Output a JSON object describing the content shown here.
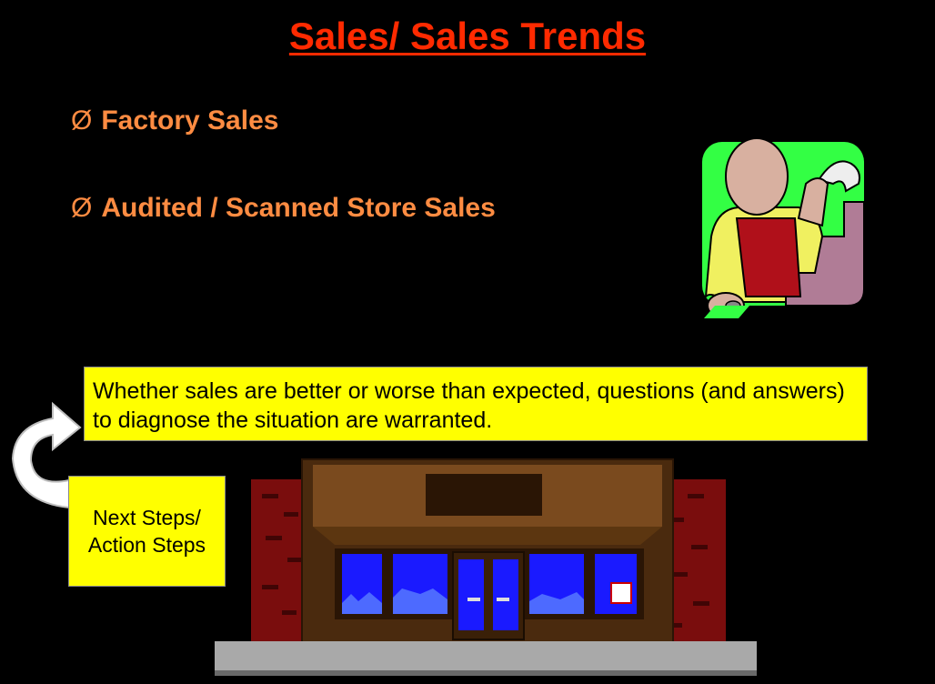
{
  "slide": {
    "title": "Sales/ Sales Trends",
    "bullet_marker": "Ø",
    "bullets": [
      {
        "label": "Factory Sales"
      },
      {
        "label": "Audited / Scanned Store Sales"
      }
    ],
    "callout_text": "Whether sales are better or worse than expected, questions (and answers) to diagnose the situation are warranted.",
    "next_steps_label": "Next Steps/ Action Steps"
  },
  "colors": {
    "background": "#000000",
    "title": "#ff2a00",
    "bullet_text": "#ff8c42",
    "callout_fill": "#ffff00"
  },
  "images": {
    "cashier_clipart": "cashier-icon",
    "storefront_clipart": "storefront-illustration",
    "curved_arrow": "curved-arrow-icon"
  }
}
